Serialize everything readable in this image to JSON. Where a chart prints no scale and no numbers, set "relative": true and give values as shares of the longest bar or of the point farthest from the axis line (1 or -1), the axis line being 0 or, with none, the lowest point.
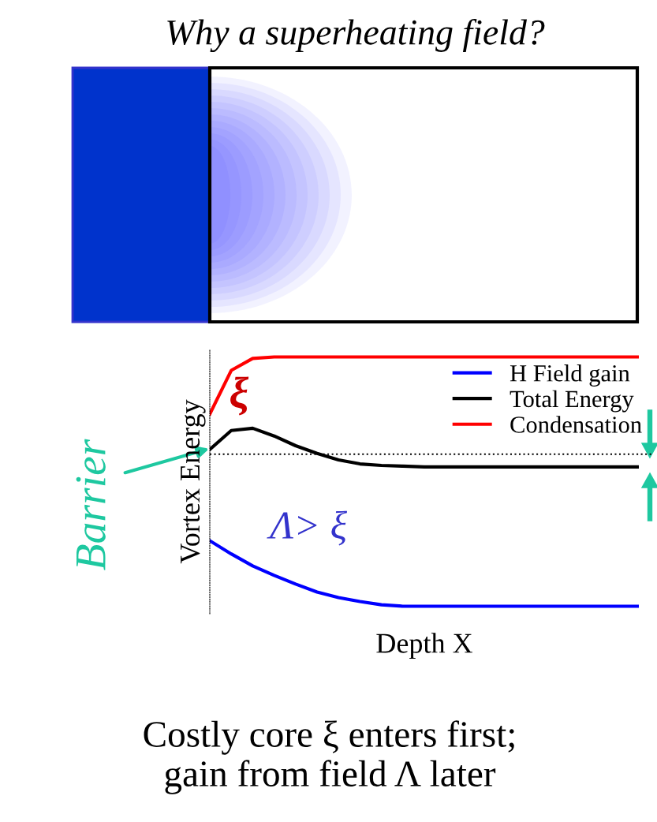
{
  "chart_data": {
    "type": "line",
    "title": "Why a superheating field?",
    "xlabel": "Depth X",
    "ylabel": "Vortex Energy",
    "relative": true,
    "legend": "top right",
    "grid": false,
    "categories": [
      null,
      null,
      null,
      null,
      null,
      null,
      null,
      null,
      null,
      null,
      null,
      null,
      null,
      null,
      null,
      null,
      null,
      null,
      null,
      null,
      null
    ],
    "series": [
      {
        "name": "H Field gain",
        "color": "#0000ff",
        "values": [
          0.263,
          0.21,
          0.162,
          0.124,
          0.089,
          0.057,
          0.035,
          0.019,
          0.006,
          0,
          0,
          0,
          0,
          0,
          0,
          0,
          0,
          0,
          0,
          0,
          0
        ]
      },
      {
        "name": "Total Energy",
        "color": "#000000",
        "values": [
          0.629,
          0.705,
          0.714,
          0.683,
          0.644,
          0.613,
          0.587,
          0.571,
          0.565,
          0.562,
          0.559,
          0.559,
          0.559,
          0.559,
          0.559,
          0.559,
          0.559,
          0.559,
          0.559,
          0.559,
          0.559
        ]
      },
      {
        "name": "Condensation",
        "color": "#ff0000",
        "values": [
          0.771,
          0.946,
          0.994,
          1,
          1,
          1,
          1,
          1,
          1,
          1,
          1,
          1,
          1,
          1,
          1,
          1,
          1,
          1,
          1,
          1,
          1
        ]
      }
    ],
    "ref_lines": [
      {
        "axis": "y",
        "value": 0.61,
        "line_style": "dotted",
        "color": "#000000"
      }
    ],
    "annotations": [
      "ξ",
      "Barrier",
      "Λ> ξ",
      "Costly core ξ enters first;\ngain from field Λ later"
    ]
  }
}
